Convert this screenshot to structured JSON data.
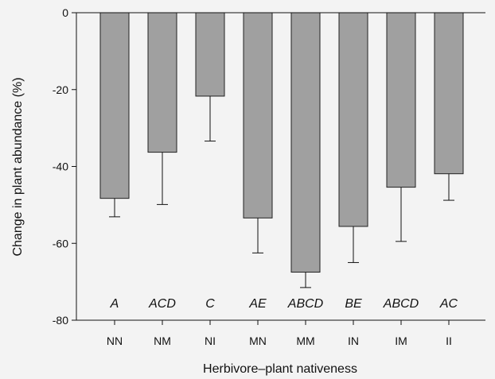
{
  "chart_data": {
    "type": "bar",
    "xlabel": "Herbivore–plant nativeness",
    "ylabel": "Change in plant abundance (%)",
    "ylim": [
      -80,
      0
    ],
    "yticks": [
      0,
      -20,
      -40,
      -60,
      -80
    ],
    "categories": [
      "NN",
      "NM",
      "NI",
      "MN",
      "MM",
      "IN",
      "IM",
      "II"
    ],
    "values": [
      -48.3,
      -36.3,
      -21.7,
      -53.4,
      -67.5,
      -55.6,
      -45.4,
      -41.9
    ],
    "error": [
      4.8,
      13.6,
      11.7,
      9.1,
      4.0,
      9.4,
      14.1,
      6.9
    ],
    "letters": [
      "A",
      "ACD",
      "C",
      "AE",
      "ABCD",
      "BE",
      "ABCD",
      "AC"
    ],
    "bar_color": "#a0a0a0",
    "grid": false
  }
}
